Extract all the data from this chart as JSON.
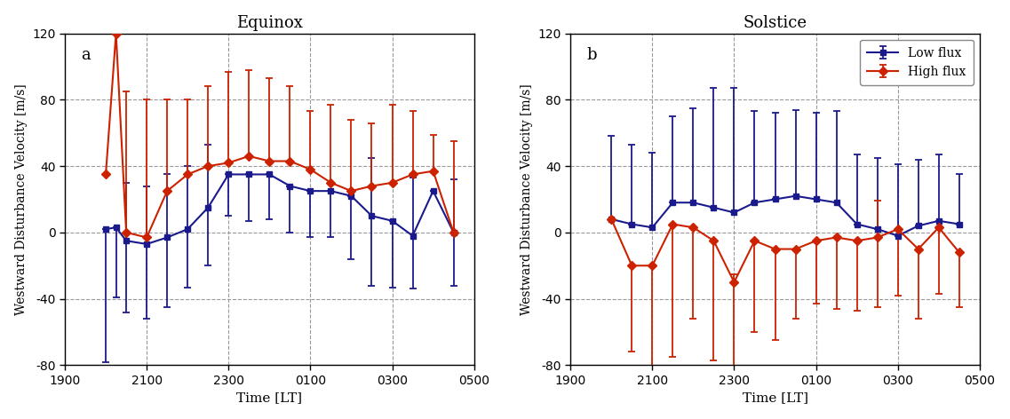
{
  "title_a": "Equinox",
  "title_b": "Solstice",
  "label_a": "a",
  "label_b": "b",
  "xlabel": "Time [LT]",
  "ylabel": "Westward Disturbance Velocity [m/s]",
  "low_flux_label": "Low flux",
  "high_flux_label": "High flux",
  "low_flux_color": "#1a1a8c",
  "high_flux_color": "#cc2200",
  "ylim": [
    -80,
    120
  ],
  "yticks": [
    -80,
    -40,
    0,
    40,
    80,
    120
  ],
  "xtick_labels": [
    "1900",
    "2100",
    "2300",
    "0100",
    "0300",
    "0500"
  ],
  "xtick_pos": [
    19,
    21,
    23,
    25,
    27,
    29
  ],
  "eq_x": [
    20.0,
    20.25,
    20.5,
    21.0,
    21.5,
    22.0,
    22.5,
    23.0,
    23.5,
    24.0,
    24.5,
    25.0,
    25.5,
    26.0,
    26.5,
    27.0,
    27.5,
    28.0,
    28.5
  ],
  "eq_low_y": [
    2,
    3,
    -5,
    -7,
    -3,
    2,
    15,
    35,
    35,
    35,
    28,
    25,
    25,
    22,
    10,
    7,
    -2,
    25,
    0
  ],
  "eq_low_yup": [
    0,
    0,
    35,
    35,
    38,
    38,
    38,
    0,
    0,
    0,
    0,
    0,
    0,
    0,
    35,
    0,
    35,
    0,
    32
  ],
  "eq_low_ydn": [
    80,
    42,
    43,
    45,
    42,
    35,
    35,
    25,
    28,
    27,
    28,
    28,
    28,
    38,
    42,
    40,
    32,
    0,
    32
  ],
  "eq_high_y": [
    35,
    120,
    0,
    -3,
    25,
    35,
    40,
    42,
    46,
    43,
    43,
    38,
    30,
    25,
    28,
    30,
    35,
    37,
    0
  ],
  "eq_high_yup": [
    0,
    0,
    85,
    83,
    55,
    45,
    48,
    55,
    52,
    50,
    45,
    35,
    47,
    43,
    38,
    47,
    38,
    22,
    55
  ],
  "eq_high_ydn": [
    0,
    0,
    0,
    0,
    0,
    0,
    0,
    0,
    0,
    0,
    0,
    0,
    0,
    0,
    0,
    0,
    0,
    0,
    0
  ],
  "sol_x": [
    20.0,
    20.5,
    21.0,
    21.5,
    22.0,
    22.5,
    23.0,
    23.5,
    24.0,
    24.5,
    25.0,
    25.5,
    26.0,
    26.5,
    27.0,
    27.5,
    28.0,
    28.5
  ],
  "sol_low_y": [
    8,
    5,
    3,
    18,
    18,
    15,
    12,
    18,
    20,
    22,
    20,
    18,
    5,
    2,
    -2,
    4,
    7,
    5
  ],
  "sol_low_yup": [
    50,
    48,
    45,
    52,
    57,
    72,
    75,
    55,
    52,
    52,
    52,
    55,
    42,
    43,
    43,
    40,
    40,
    30
  ],
  "sol_low_ydn": [
    0,
    0,
    0,
    0,
    0,
    0,
    0,
    0,
    0,
    0,
    0,
    0,
    0,
    0,
    0,
    0,
    0,
    0
  ],
  "sol_high_y": [
    8,
    -20,
    -20,
    5,
    3,
    -5,
    -30,
    -5,
    -10,
    -10,
    -5,
    -3,
    -5,
    -3,
    2,
    -10,
    3,
    -12
  ],
  "sol_high_yup": [
    0,
    0,
    0,
    0,
    0,
    0,
    5,
    0,
    0,
    0,
    0,
    0,
    0,
    22,
    0,
    0,
    0,
    0
  ],
  "sol_high_ydn": [
    0,
    52,
    62,
    80,
    55,
    72,
    75,
    55,
    55,
    42,
    38,
    43,
    42,
    42,
    40,
    42,
    40,
    33
  ]
}
